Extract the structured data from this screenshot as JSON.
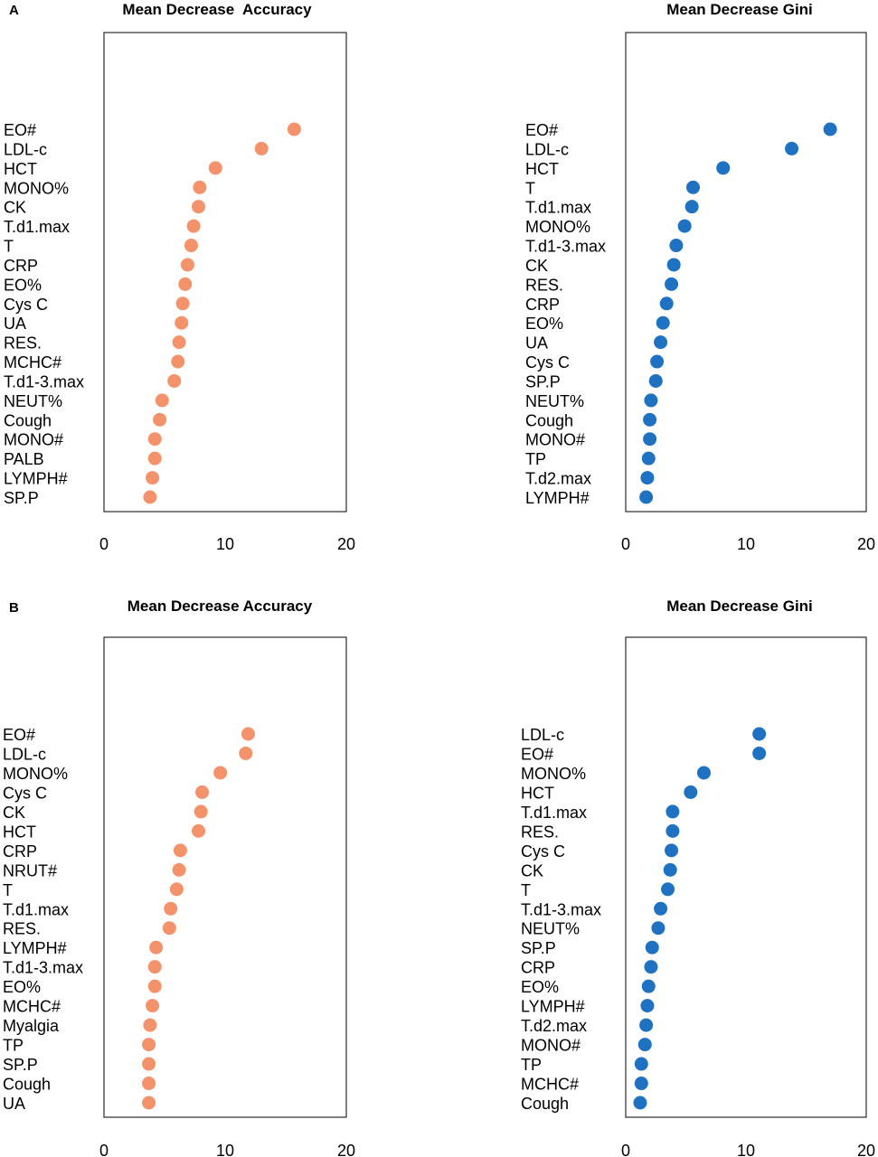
{
  "colors": {
    "accuracy": "#f4926c",
    "gini": "#1f72c1"
  },
  "chart_data": [
    {
      "panel": "A",
      "type": "scatter",
      "title": "Mean Decrease  Accuracy",
      "xlim": [
        0,
        20
      ],
      "xticks": [
        0,
        10,
        20
      ],
      "categories": [
        "EO#",
        "LDL-c",
        "HCT",
        "MONO%",
        "CK",
        "T.d1.max",
        "T",
        "CRP",
        "EO%",
        "Cys C",
        "UA",
        "RES.",
        "MCHC#",
        "T.d1-3.max",
        "NEUT%",
        "Cough",
        "MONO#",
        "PALB",
        "LYMPH#",
        "SP.P"
      ],
      "values": [
        15.7,
        13.0,
        9.2,
        7.9,
        7.8,
        7.4,
        7.2,
        6.9,
        6.7,
        6.5,
        6.4,
        6.2,
        6.1,
        5.8,
        4.8,
        4.6,
        4.2,
        4.2,
        4.0,
        3.8
      ]
    },
    {
      "panel": "",
      "type": "scatter",
      "title": "Mean Decrease Gini",
      "xlim": [
        0,
        20
      ],
      "xticks": [
        0,
        10,
        20
      ],
      "categories": [
        "EO#",
        "LDL-c",
        "HCT",
        "T",
        "T.d1.max",
        "MONO%",
        "T.d1-3.max",
        "CK",
        "RES.",
        "CRP",
        "EO%",
        "UA",
        "Cys C",
        "SP.P",
        "NEUT%",
        "Cough",
        "MONO#",
        "TP",
        "T.d2.max",
        "LYMPH#"
      ],
      "values": [
        17.0,
        13.8,
        8.1,
        5.6,
        5.5,
        4.9,
        4.2,
        4.0,
        3.8,
        3.4,
        3.1,
        2.9,
        2.6,
        2.5,
        2.1,
        2.0,
        2.0,
        1.9,
        1.8,
        1.7
      ]
    },
    {
      "panel": "B",
      "type": "scatter",
      "title": "Mean Decrease Accuracy",
      "xlim": [
        0,
        20
      ],
      "xticks": [
        0,
        10,
        20
      ],
      "categories": [
        "EO#",
        "LDL-c",
        "MONO%",
        "Cys C",
        "CK",
        "HCT",
        "CRP",
        "NRUT#",
        "T",
        "T.d1.max",
        "RES.",
        "LYMPH#",
        "T.d1-3.max",
        "EO%",
        "MCHC#",
        "Myalgia",
        "TP",
        "SP.P",
        "Cough",
        "UA"
      ],
      "values": [
        11.9,
        11.7,
        9.6,
        8.1,
        8.0,
        7.8,
        6.3,
        6.2,
        6.0,
        5.5,
        5.4,
        4.3,
        4.2,
        4.2,
        4.0,
        3.8,
        3.7,
        3.7,
        3.7,
        3.7
      ]
    },
    {
      "panel": "",
      "type": "scatter",
      "title": "Mean Decrease Gini",
      "xlim": [
        0,
        20
      ],
      "xticks": [
        0,
        10,
        20
      ],
      "categories": [
        "LDL-c",
        "EO#",
        "MONO%",
        "HCT",
        "T.d1.max",
        "RES.",
        "Cys C",
        "CK",
        "T",
        "T.d1-3.max",
        "NEUT%",
        "SP.P",
        "CRP",
        "EO%",
        "LYMPH#",
        "T.d2.max",
        "MONO#",
        "TP",
        "MCHC#",
        "Cough"
      ],
      "values": [
        11.1,
        11.1,
        6.5,
        5.4,
        3.9,
        3.9,
        3.8,
        3.7,
        3.5,
        2.9,
        2.7,
        2.2,
        2.1,
        1.9,
        1.8,
        1.7,
        1.6,
        1.3,
        1.3,
        1.2
      ]
    }
  ]
}
